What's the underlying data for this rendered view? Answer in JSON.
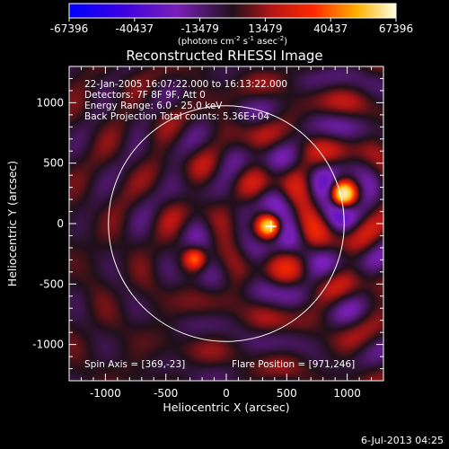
{
  "chart_data": {
    "type": "heatmap",
    "title": "Reconstructed RHESSI Image",
    "xlabel": "Heliocentric X (arcsec)",
    "ylabel": "Heliocentric Y (arcsec)",
    "xlim": [
      -1300,
      1300
    ],
    "ylim": [
      -1300,
      1300
    ],
    "x_ticks": [
      -1000,
      -500,
      0,
      500,
      1000
    ],
    "y_ticks": [
      -1000,
      -500,
      0,
      500,
      1000
    ],
    "colorbar": {
      "range": [
        -67396,
        67396
      ],
      "tick_labels": [
        "-67396",
        "-40437",
        "-13479",
        "13479",
        "40437",
        "67396"
      ],
      "units_main": "(photons cm",
      "units_exp1": "-2",
      "units_mid1": " s",
      "units_exp2": "-1",
      "units_mid2": " asec",
      "units_exp3": "-2",
      "units_end": ")"
    },
    "info_lines": [
      "22-Jan-2005 16:07:22.000 to 16:13:22.000",
      "Detectors: 7F 8F 9F, Att 0",
      "Energy Range: 6.0 - 25.0 keV",
      "Back Projection    Total counts: 5.36E+04"
    ],
    "spin_axis_text": "Spin Axis = [369,-23]",
    "flare_position_text": "Flare Position = [971,246]",
    "solar_limb_radius_arcsec": 975,
    "spin_axis": [
      369,
      -23
    ],
    "sources": [
      {
        "x": 971,
        "y": 246,
        "strength": 67396
      },
      {
        "x": 350,
        "y": -20,
        "strength": 55000
      },
      {
        "x": -260,
        "y": -290,
        "strength": 30000
      }
    ],
    "grid": false
  },
  "footer": {
    "timestamp": "6-Jul-2013 04:25"
  }
}
